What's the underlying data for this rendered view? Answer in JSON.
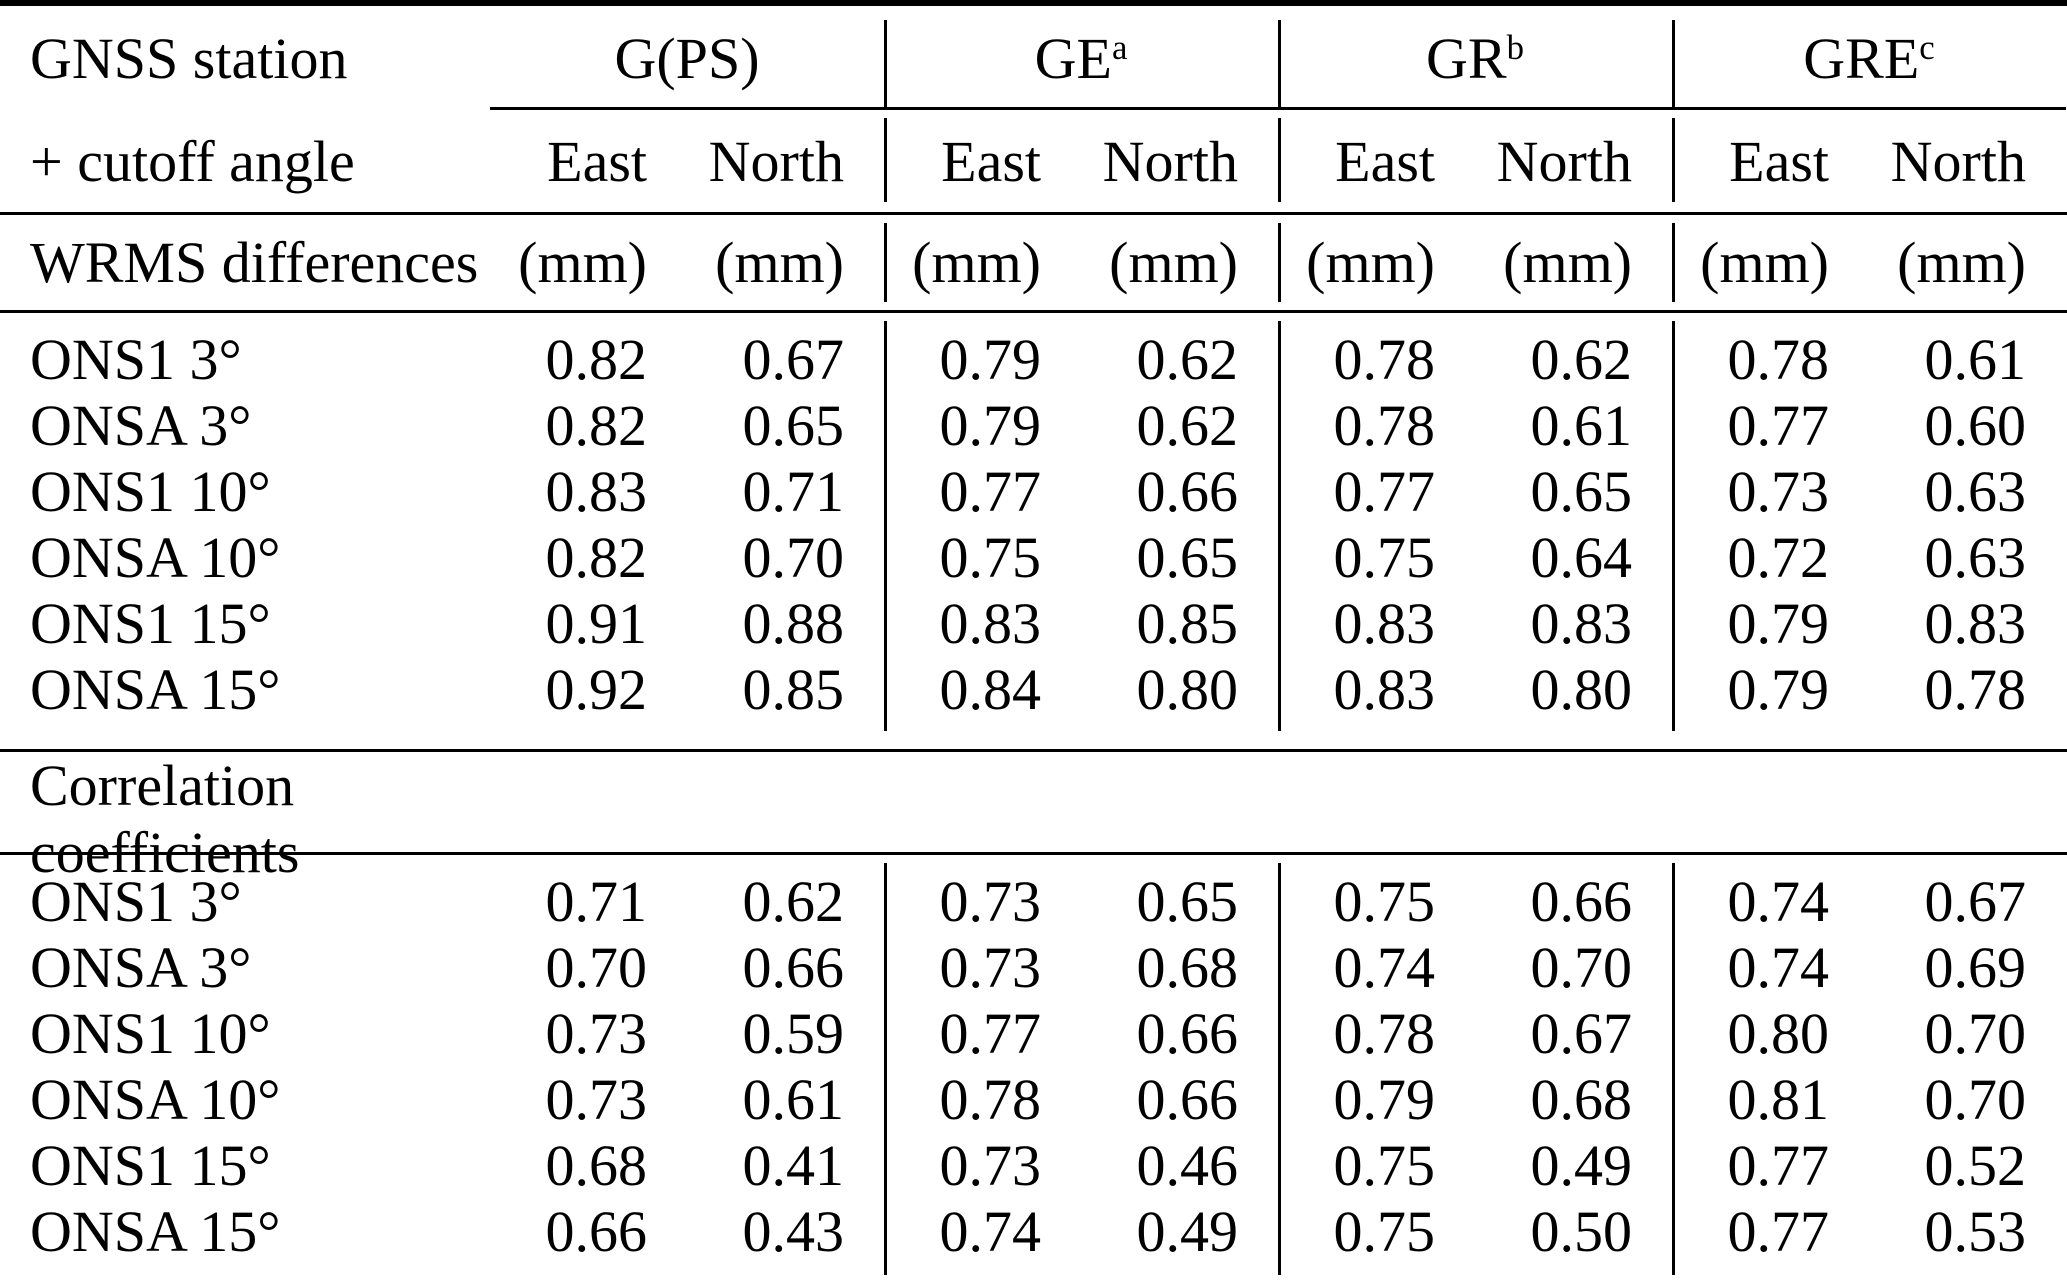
{
  "table": {
    "corner": {
      "line1": "GNSS station",
      "line2": "+ cutoff angle"
    },
    "groups": [
      {
        "label": "G(PS)",
        "sup": ""
      },
      {
        "label": "GE",
        "sup": "a"
      },
      {
        "label": "GR",
        "sup": "b"
      },
      {
        "label": "GRE",
        "sup": "c"
      }
    ],
    "subheaders": [
      "East",
      "North"
    ],
    "sections": [
      {
        "title": "WRMS differences",
        "unit": "(mm)",
        "rows": [
          {
            "label": "ONS1 3°",
            "values": [
              "0.82",
              "0.67",
              "0.79",
              "0.62",
              "0.78",
              "0.62",
              "0.78",
              "0.61"
            ]
          },
          {
            "label": "ONSA 3°",
            "values": [
              "0.82",
              "0.65",
              "0.79",
              "0.62",
              "0.78",
              "0.61",
              "0.77",
              "0.60"
            ]
          },
          {
            "label": "ONS1 10°",
            "values": [
              "0.83",
              "0.71",
              "0.77",
              "0.66",
              "0.77",
              "0.65",
              "0.73",
              "0.63"
            ]
          },
          {
            "label": "ONSA 10°",
            "values": [
              "0.82",
              "0.70",
              "0.75",
              "0.65",
              "0.75",
              "0.64",
              "0.72",
              "0.63"
            ]
          },
          {
            "label": "ONS1 15°",
            "values": [
              "0.91",
              "0.88",
              "0.83",
              "0.85",
              "0.83",
              "0.83",
              "0.79",
              "0.83"
            ]
          },
          {
            "label": "ONSA 15°",
            "values": [
              "0.92",
              "0.85",
              "0.84",
              "0.80",
              "0.83",
              "0.80",
              "0.79",
              "0.78"
            ]
          }
        ]
      },
      {
        "title": "Correlation coefficients",
        "unit": "",
        "rows": [
          {
            "label": "ONS1 3°",
            "values": [
              "0.71",
              "0.62",
              "0.73",
              "0.65",
              "0.75",
              "0.66",
              "0.74",
              "0.67"
            ]
          },
          {
            "label": "ONSA 3°",
            "values": [
              "0.70",
              "0.66",
              "0.73",
              "0.68",
              "0.74",
              "0.70",
              "0.74",
              "0.69"
            ]
          },
          {
            "label": "ONS1 10°",
            "values": [
              "0.73",
              "0.59",
              "0.77",
              "0.66",
              "0.78",
              "0.67",
              "0.80",
              "0.70"
            ]
          },
          {
            "label": "ONSA 10°",
            "values": [
              "0.73",
              "0.61",
              "0.78",
              "0.66",
              "0.79",
              "0.68",
              "0.81",
              "0.70"
            ]
          },
          {
            "label": "ONS1 15°",
            "values": [
              "0.68",
              "0.41",
              "0.73",
              "0.46",
              "0.75",
              "0.49",
              "0.77",
              "0.52"
            ]
          },
          {
            "label": "ONSA 15°",
            "values": [
              "0.66",
              "0.43",
              "0.74",
              "0.49",
              "0.75",
              "0.50",
              "0.77",
              "0.53"
            ]
          }
        ]
      }
    ],
    "colors": {
      "text": "#000000",
      "background": "#ffffff",
      "rule": "#000000"
    }
  }
}
